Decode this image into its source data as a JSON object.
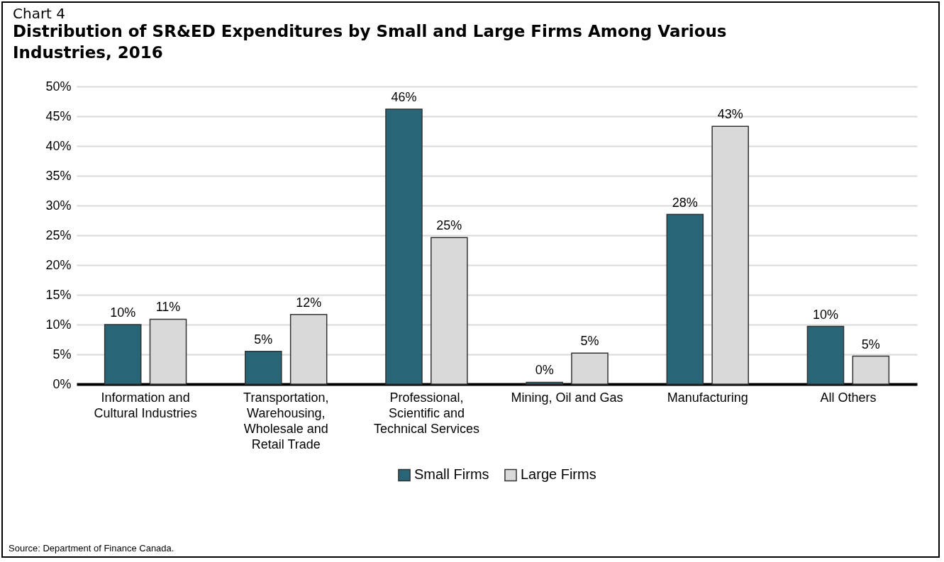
{
  "chart_data": {
    "type": "bar",
    "title": "Chart 4",
    "subtitle": "Distribution of SR&ED Expenditures by Small and Large Firms Among Various Industries, 2016",
    "categories": [
      "Information and Cultural Industries",
      "Transportation, Warehousing, Wholesale and Retail Trade",
      "Professional, Scientific and Technical Services",
      "Mining, Oil and Gas",
      "Manufacturing",
      "All Others"
    ],
    "series": [
      {
        "name": "Small Firms",
        "color": "#286577",
        "values": [
          10.0,
          5.5,
          46.2,
          0.3,
          28.5,
          9.7
        ],
        "value_labels": [
          "10%",
          "5%",
          "46%",
          "0%",
          "28%",
          "10%"
        ]
      },
      {
        "name": "Large Firms",
        "color": "#d9d9d9",
        "values": [
          10.9,
          11.7,
          24.6,
          5.2,
          43.3,
          4.7
        ],
        "value_labels": [
          "11%",
          "12%",
          "25%",
          "5%",
          "43%",
          "5%"
        ]
      }
    ],
    "ylim": [
      0,
      50
    ],
    "yticks": [
      {
        "value": 0,
        "label": "0%"
      },
      {
        "value": 5,
        "label": "5%"
      },
      {
        "value": 10,
        "label": "10%"
      },
      {
        "value": 15,
        "label": "15%"
      },
      {
        "value": 20,
        "label": "20%"
      },
      {
        "value": 25,
        "label": "25%"
      },
      {
        "value": 30,
        "label": "30%"
      },
      {
        "value": 35,
        "label": "35%"
      },
      {
        "value": 40,
        "label": "40%"
      },
      {
        "value": 45,
        "label": "45%"
      },
      {
        "value": 50,
        "label": "50%"
      }
    ],
    "grid": "y",
    "legend": "bottom",
    "annotations": [
      "Source: Department of Finance Canada."
    ]
  }
}
